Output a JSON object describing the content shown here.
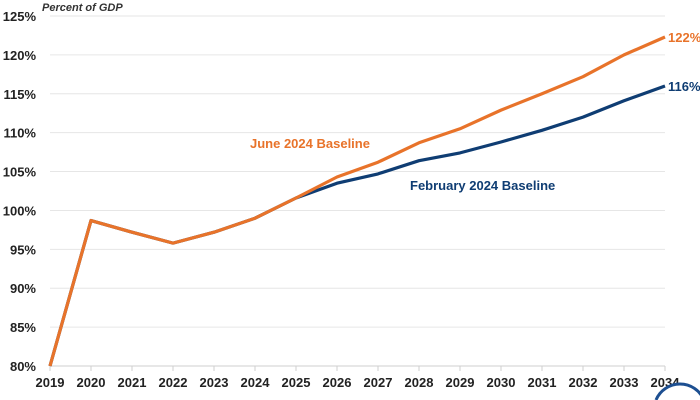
{
  "chart_data": {
    "type": "line",
    "ylabel": "Percent of GDP",
    "x": [
      2019,
      2020,
      2021,
      2022,
      2023,
      2024,
      2025,
      2026,
      2027,
      2028,
      2029,
      2030,
      2031,
      2032,
      2033,
      2034
    ],
    "ylim": [
      80,
      125
    ],
    "yticks": [
      "80%",
      "85%",
      "90%",
      "95%",
      "100%",
      "105%",
      "110%",
      "115%",
      "120%",
      "125%"
    ],
    "xticks": [
      "2019",
      "2020",
      "2021",
      "2022",
      "2023",
      "2024",
      "2025",
      "2026",
      "2027",
      "2028",
      "2029",
      "2030",
      "2031",
      "2032",
      "2033",
      "2034"
    ],
    "grid": true,
    "series": [
      {
        "name": "February 2024 Baseline",
        "color": "#0f3d73",
        "end_label": "116%",
        "values": [
          80,
          98.7,
          97.2,
          95.8,
          97.2,
          99.0,
          101.6,
          103.5,
          104.7,
          106.4,
          107.4,
          108.8,
          110.3,
          112.0,
          114.1,
          116.0
        ]
      },
      {
        "name": "June 2024 Baseline",
        "color": "#e8732a",
        "end_label": "122%",
        "values": [
          80,
          98.7,
          97.2,
          95.8,
          97.2,
          99.0,
          101.6,
          104.3,
          106.2,
          108.7,
          110.5,
          112.9,
          115.0,
          117.2,
          120.0,
          122.3
        ]
      }
    ]
  }
}
